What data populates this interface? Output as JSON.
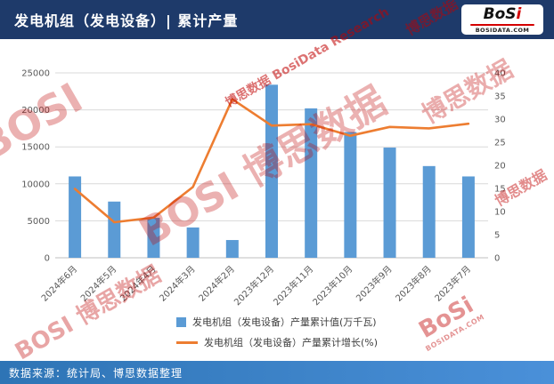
{
  "header": {
    "title": "发电机组（发电设备）| 累计产量",
    "logo": {
      "main": "BoS",
      "accent": "i",
      "site": "BOSIDATA.COM"
    }
  },
  "footer": {
    "source": "数据来源：统计局、博思数据整理"
  },
  "colors": {
    "header_bg": "#1e3a6a",
    "footer_bg_left": "#2e74b5",
    "footer_bg_right": "#4a90d9",
    "bar": "#5b9bd5",
    "line": "#ed7d31",
    "grid": "#d9d9d9",
    "axis": "#bfbfbf",
    "tick_text": "#595959",
    "watermark": "#c00000"
  },
  "chart_data": {
    "type": "combo",
    "title": "发电机组（发电设备）| 累计产量",
    "categories": [
      "2024年6月",
      "2024年5月",
      "2024年4月",
      "2024年3月",
      "2024年2月",
      "2023年12月",
      "2023年11月",
      "2023年10月",
      "2023年9月",
      "2023年8月",
      "2023年7月"
    ],
    "series": [
      {
        "name": "发电机组（发电设备）产量累计值(万千瓦)",
        "type": "bar",
        "axis": "left",
        "values": [
          11000,
          7600,
          5400,
          4100,
          2400,
          23400,
          20200,
          17000,
          14900,
          12400,
          11000
        ]
      },
      {
        "name": "发电机组（发电设备）产量累计增长(%)",
        "type": "line",
        "axis": "right",
        "values": [
          14.9,
          7.7,
          8.7,
          15.3,
          34.3,
          28.6,
          28.9,
          26.4,
          28.3,
          28.0,
          29.0
        ]
      }
    ],
    "left_axis": {
      "min": 0,
      "max": 25000,
      "step": 5000
    },
    "right_axis": {
      "min": 0,
      "max": 40,
      "step": 5
    },
    "grid": true,
    "legend_position": "bottom"
  },
  "watermark": {
    "brand": "BOSI",
    "cn": "博思数据",
    "combo": "BOSI 博思数据",
    "cn_en": "博思数据 BosiData Research",
    "logo_brand": "BoSi",
    "site": "BOSIDATA.COM"
  }
}
